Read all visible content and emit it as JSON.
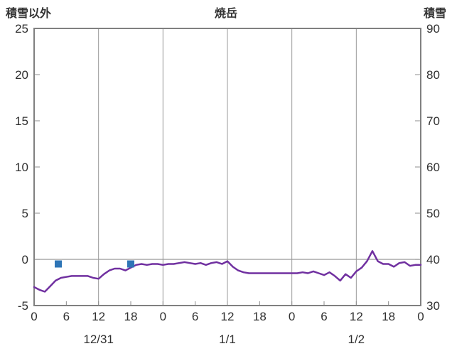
{
  "title": "焼岳",
  "left_axis_label": "積雪以外",
  "right_axis_label": "積雪",
  "colors": {
    "line": "#7030a0",
    "marker": "#2e75b6",
    "grid": "#999999",
    "border": "#808080",
    "tick": "#8c8c8c",
    "text": "#303030"
  },
  "chart_data": {
    "type": "line",
    "title": "焼岳",
    "x_unit": "hours (0-72, hourly over 3 days)",
    "x_range": [
      0,
      72
    ],
    "left_ylim": [
      -5,
      25
    ],
    "right_ylim": [
      30,
      90
    ],
    "left_ticks": [
      25,
      20,
      15,
      10,
      5,
      0,
      -5
    ],
    "right_ticks": [
      90,
      80,
      70,
      60,
      50,
      40,
      30
    ],
    "hour_tick_positions": [
      0,
      6,
      12,
      18,
      24,
      30,
      36,
      42,
      48,
      54,
      60,
      66,
      72
    ],
    "hour_tick_labels": [
      "0",
      "6",
      "12",
      "18",
      "0",
      "6",
      "12",
      "18",
      "0",
      "6",
      "12",
      "18",
      "0"
    ],
    "date_labels": [
      {
        "label": "12/31",
        "hour_center": 12
      },
      {
        "label": "1/1",
        "hour_center": 36
      },
      {
        "label": "1/2",
        "hour_center": 60
      }
    ],
    "vertical_gridlines_hours": [
      12,
      24,
      36,
      48,
      60
    ],
    "zero_line_left_value": 0,
    "series": [
      {
        "name": "積雪以外",
        "axis": "left",
        "style": "line",
        "color": "#7030a0",
        "x": [
          0,
          1,
          2,
          3,
          4,
          5,
          6,
          7,
          8,
          9,
          10,
          11,
          12,
          13,
          14,
          15,
          16,
          17,
          18,
          19,
          20,
          21,
          22,
          23,
          24,
          25,
          26,
          27,
          28,
          29,
          30,
          31,
          32,
          33,
          34,
          35,
          36,
          37,
          38,
          39,
          40,
          41,
          42,
          43,
          44,
          45,
          46,
          47,
          48,
          49,
          50,
          51,
          52,
          53,
          54,
          55,
          56,
          57,
          58,
          59,
          60,
          61,
          62,
          63,
          64,
          65,
          66,
          67,
          68,
          69,
          70,
          71,
          72
        ],
        "values": [
          -3.0,
          -3.3,
          -3.5,
          -2.9,
          -2.3,
          -2.0,
          -1.9,
          -1.8,
          -1.8,
          -1.8,
          -1.8,
          -2.0,
          -2.1,
          -1.6,
          -1.2,
          -1.0,
          -1.0,
          -1.2,
          -0.9,
          -0.6,
          -0.5,
          -0.6,
          -0.5,
          -0.5,
          -0.6,
          -0.5,
          -0.5,
          -0.4,
          -0.3,
          -0.4,
          -0.5,
          -0.4,
          -0.6,
          -0.4,
          -0.3,
          -0.5,
          -0.2,
          -0.8,
          -1.2,
          -1.4,
          -1.5,
          -1.5,
          -1.5,
          -1.5,
          -1.5,
          -1.5,
          -1.5,
          -1.5,
          -1.5,
          -1.5,
          -1.4,
          -1.5,
          -1.3,
          -1.5,
          -1.7,
          -1.4,
          -1.8,
          -2.3,
          -1.6,
          -2.0,
          -1.3,
          -0.9,
          -0.2,
          0.9,
          -0.2,
          -0.5,
          -0.5,
          -0.8,
          -0.4,
          -0.3,
          -0.7,
          -0.6,
          -0.6
        ]
      },
      {
        "name": "積雪",
        "axis": "right",
        "style": "square-marker",
        "color": "#2e75b6",
        "points": [
          {
            "hour": 4.5,
            "value": 39
          },
          {
            "hour": 18,
            "value": 39
          }
        ]
      }
    ]
  }
}
